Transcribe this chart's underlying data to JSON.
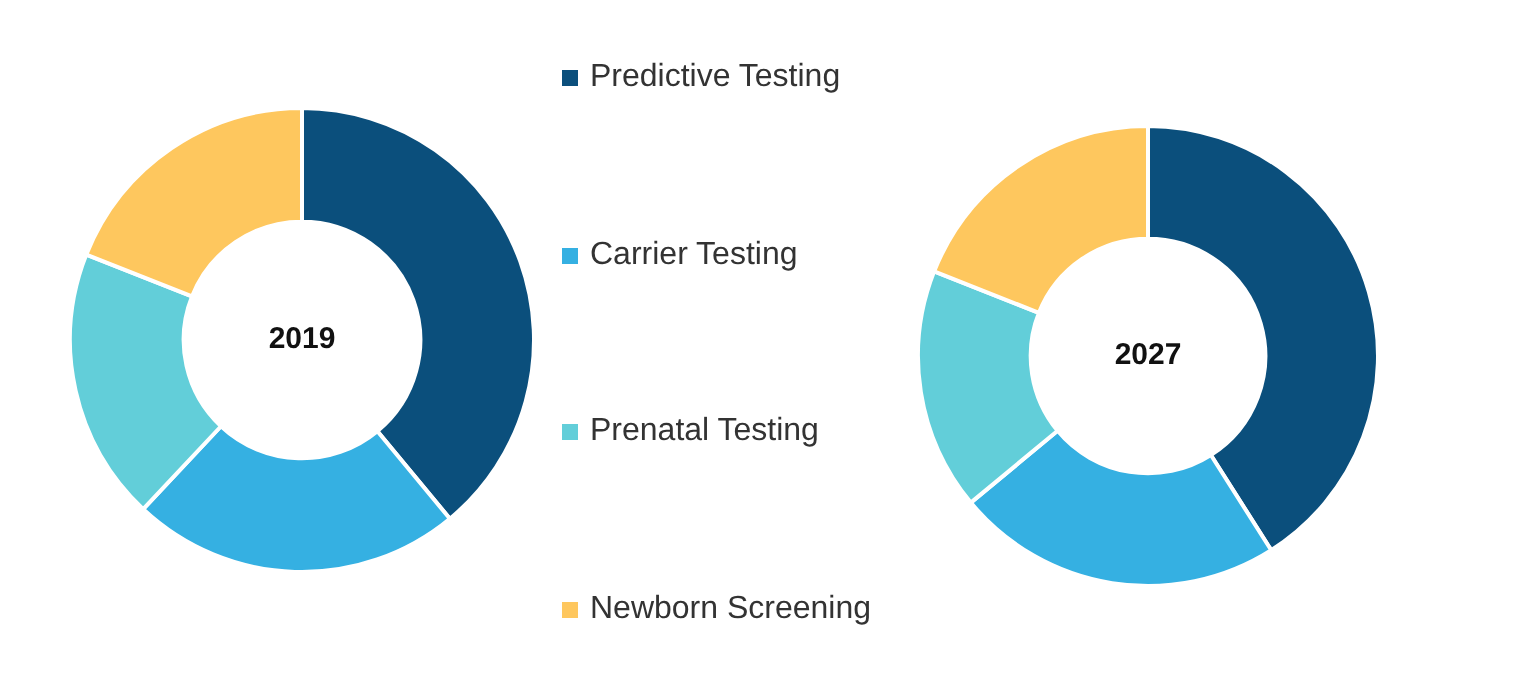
{
  "chart_data": [
    {
      "type": "donut",
      "title": "2019",
      "categories": [
        "Predictive Testing",
        "Carrier Testing",
        "Prenatal Testing",
        "Newborn Screening"
      ],
      "values": [
        39,
        23,
        19,
        19
      ],
      "colors": [
        "#0b4f7c",
        "#35b0e2",
        "#62ced9",
        "#fec75e"
      ],
      "legend": "right"
    },
    {
      "type": "donut",
      "title": "2027",
      "categories": [
        null,
        null,
        null,
        null
      ],
      "values": [
        41,
        23,
        17,
        19
      ],
      "colors": [
        "#0b4f7c",
        "#35b0e2",
        "#62ced9",
        "#fec75e"
      ]
    }
  ]
}
